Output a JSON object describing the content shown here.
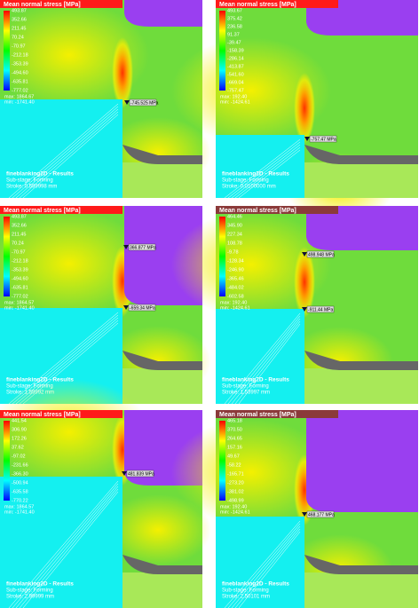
{
  "panels": [
    {
      "title": "Mean normal stress [MPa]",
      "legend": [
        "493.87",
        "352.66",
        "211.45",
        "70.24",
        "-70.97",
        "-212.18",
        "-353.39",
        "-494.60",
        "-635.81",
        "-777.02"
      ],
      "max": "max: 1864.67",
      "min": "min: -1741.40",
      "probes": [
        "-745.525 MPa"
      ],
      "footer": [
        "fineblanking2D - Results",
        "Sub-stage: Forming",
        "Stroke: 0.599998 mm"
      ]
    },
    {
      "title": "Mean normal stress [MPa]",
      "legend": [
        "493.67",
        "375.42",
        "236.58",
        "91.37",
        "-39.47",
        "-158.39",
        "-286.14",
        "-413.87",
        "-541.60",
        "-669.04",
        "-757.47"
      ],
      "max": "max: 192.40",
      "min": "min: -1424.61",
      "probes": [
        "-757.47 MPa"
      ],
      "footer": [
        "fineblanking2D - Results",
        "Sub-stage: Forming",
        "Stroke: 0.0100000 mm"
      ]
    },
    {
      "title": "Mean normal stress [MPa]",
      "legend": [
        "493.87",
        "352.66",
        "211.45",
        "70.24",
        "-70.97",
        "-212.18",
        "-353.39",
        "-494.60",
        "-635.81",
        "-777.02"
      ],
      "max": "max: 1864.57",
      "min": "min: -1741.40",
      "probes": [
        "366.877 MPa",
        "-659.34 MPa"
      ],
      "footer": [
        "fineblanking2D - Results",
        "Sub-stage: Forming",
        "Stroke: 1.59992 mm"
      ]
    },
    {
      "title": "Mean normal stress [MPa]",
      "legend": [
        "464.46",
        "345.90",
        "227.34",
        "108.78",
        "-9.78",
        "-128.34",
        "-246.90",
        "-365.46",
        "-484.02",
        "-602.58"
      ],
      "max": "max: 192.40",
      "min": "min: -1424.61",
      "probes": [
        "498.948 MPa",
        "-911.44 MPa"
      ],
      "footer": [
        "fineblanking2D - Results",
        "Sub-stage: Forming",
        "Stroke: 1.53997 mm"
      ]
    },
    {
      "title": "Mean normal stress [MPa]",
      "legend": [
        "441.54",
        "306.90",
        "172.26",
        "37.62",
        "-97.02",
        "-231.66",
        "-366.30",
        "-500.94",
        "-635.58",
        "-770.22"
      ],
      "max": "max: 1864.57",
      "min": "min: -1741.40",
      "probes": [
        "481.839 MPa"
      ],
      "footer": [
        "fineblanking2D - Results",
        "Sub-stage: Forming",
        "Stroke: 2.99999 mm"
      ]
    },
    {
      "title": "Mean normal stress [MPa]",
      "legend": [
        "465.18",
        "370.50",
        "264.65",
        "157.16",
        "49.67",
        "-58.22",
        "-165.71",
        "-273.20",
        "-381.02",
        "-498.99"
      ],
      "max": "max: 192.40",
      "min": "min: -1424.61",
      "probes": [
        "468.177 MPa"
      ],
      "footer": [
        "fineblanking2D - Results",
        "Sub-stage: Forming",
        "Stroke: 2.50101 mm"
      ]
    }
  ]
}
